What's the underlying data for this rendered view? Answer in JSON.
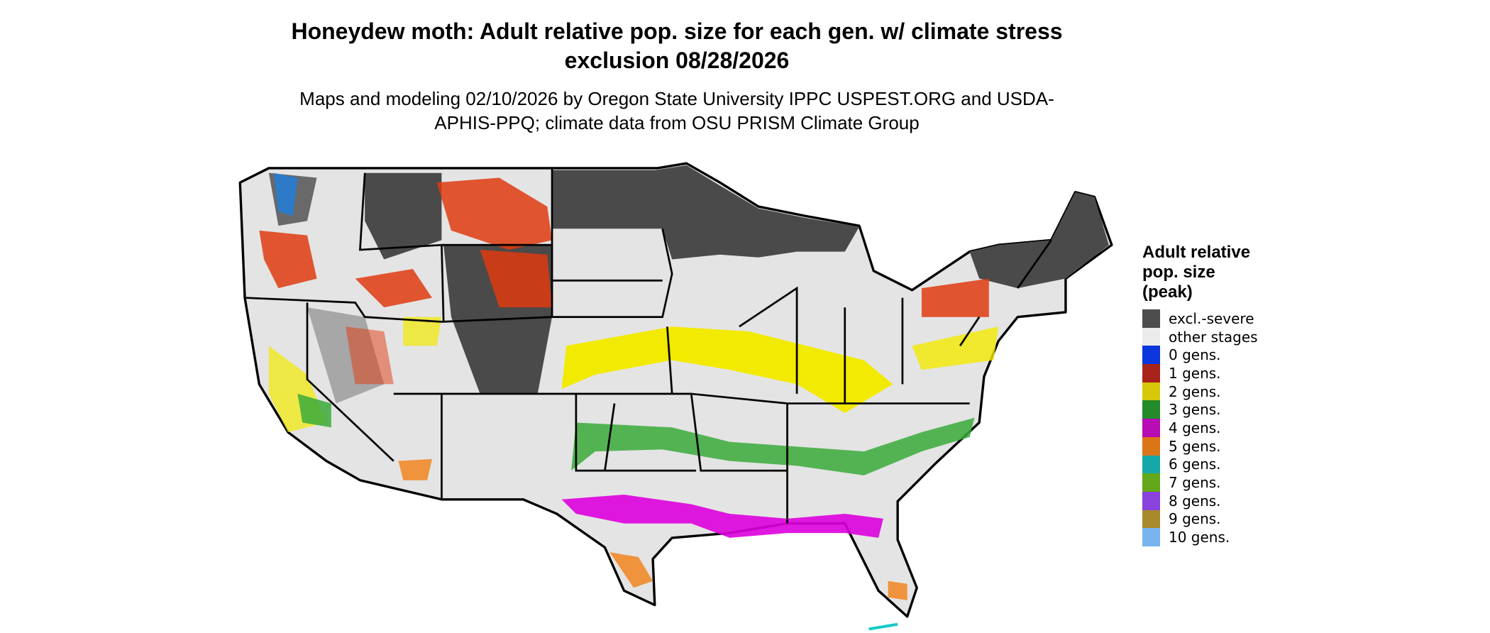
{
  "title": "Honeydew moth: Adult relative pop. size for each gen. w/ climate stress exclusion 08/28/2026",
  "subtitle": "Maps and modeling 02/10/2026 by Oregon State University IPPC USPEST.ORG and USDA-APHIS-PPQ; climate data from OSU PRISM Climate Group",
  "legend": {
    "title": "Adult relative pop. size (peak)",
    "items": [
      {
        "label": "excl.-severe",
        "color": "#4d4d4d"
      },
      {
        "label": "other stages",
        "color": "#ebebeb"
      },
      {
        "label": "0 gens.",
        "color": "#0a36dc"
      },
      {
        "label": "1 gens.",
        "color": "#a8231a"
      },
      {
        "label": "2 gens.",
        "color": "#d8c80a"
      },
      {
        "label": "3 gens.",
        "color": "#248a2a"
      },
      {
        "label": "4 gens.",
        "color": "#b80cb4"
      },
      {
        "label": "5 gens.",
        "color": "#dc7418"
      },
      {
        "label": "6 gens.",
        "color": "#16a8a8"
      },
      {
        "label": "7 gens.",
        "color": "#62a81a"
      },
      {
        "label": "8 gens.",
        "color": "#8a42dc"
      },
      {
        "label": "9 gens.",
        "color": "#a88a2a"
      },
      {
        "label": "10 gens.",
        "color": "#78b4ee"
      }
    ]
  }
}
